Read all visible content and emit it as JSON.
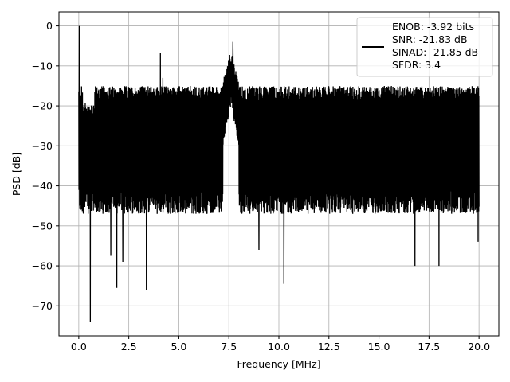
{
  "chart_data": {
    "type": "line",
    "title": "",
    "xlabel": "Frequency [MHz]",
    "ylabel": "PSD [dB]",
    "xlim": [
      -0.99,
      20.99
    ],
    "ylim": [
      -77.5,
      3.5
    ],
    "xticks": [
      0.0,
      2.5,
      5.0,
      7.5,
      10.0,
      12.5,
      15.0,
      17.5,
      20.0
    ],
    "xtick_labels": [
      "0.0",
      "2.5",
      "5.0",
      "7.5",
      "10.0",
      "12.5",
      "15.0",
      "17.5",
      "20.0"
    ],
    "yticks": [
      0,
      -10,
      -20,
      -30,
      -40,
      -50,
      -60,
      -70
    ],
    "ytick_labels": [
      "0",
      "−10",
      "−20",
      "−30",
      "−40",
      "−50",
      "−60",
      "−70"
    ],
    "grid": true,
    "legend_position": "top-right",
    "series": [
      {
        "name": "ENOB: -3.92 bits\nSNR: -21.83 dB\nSINAD: -21.85 dB\nSFDR: 3.4",
        "color": "#000000",
        "x_range": [
          0.0,
          20.0
        ],
        "noise_band_upper_db": -17.0,
        "noise_band_lower_db": -44.0,
        "dips": [
          {
            "x": 0.58,
            "y": -74.0
          },
          {
            "x": 1.9,
            "y": -65.5
          },
          {
            "x": 3.38,
            "y": -66.0
          },
          {
            "x": 10.25,
            "y": -64.5
          },
          {
            "x": 16.8,
            "y": -60.0
          },
          {
            "x": 1.6,
            "y": -57.5
          },
          {
            "x": 9.0,
            "y": -56.0
          },
          {
            "x": 18.0,
            "y": -60.0
          },
          {
            "x": 2.2,
            "y": -59.0
          },
          {
            "x": 19.95,
            "y": -54.0
          }
        ],
        "peaks": [
          {
            "x": 0.02,
            "y": 0.0
          },
          {
            "x": 4.08,
            "y": -6.8
          },
          {
            "x": 7.7,
            "y": -4.0
          },
          {
            "x": 7.5,
            "y": -8.5
          },
          {
            "x": 4.2,
            "y": -13.0
          }
        ]
      }
    ],
    "legend_lines": [
      "ENOB: -3.92 bits",
      "SNR: -21.83 dB",
      "SINAD: -21.85 dB",
      "SFDR: 3.4"
    ]
  }
}
